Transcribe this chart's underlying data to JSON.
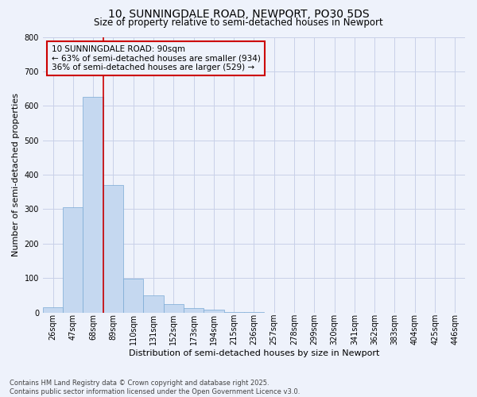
{
  "title1": "10, SUNNINGDALE ROAD, NEWPORT, PO30 5DS",
  "title2": "Size of property relative to semi-detached houses in Newport",
  "xlabel": "Distribution of semi-detached houses by size in Newport",
  "ylabel": "Number of semi-detached properties",
  "categories": [
    "26sqm",
    "47sqm",
    "68sqm",
    "89sqm",
    "110sqm",
    "131sqm",
    "152sqm",
    "173sqm",
    "194sqm",
    "215sqm",
    "236sqm",
    "257sqm",
    "278sqm",
    "299sqm",
    "320sqm",
    "341sqm",
    "362sqm",
    "383sqm",
    "404sqm",
    "425sqm",
    "446sqm"
  ],
  "values": [
    15,
    305,
    625,
    370,
    97,
    50,
    25,
    12,
    8,
    2,
    1,
    0,
    0,
    0,
    0,
    0,
    0,
    0,
    0,
    0,
    0
  ],
  "bar_color": "#c5d8f0",
  "bar_edge_color": "#7aaad4",
  "vline_index": 3,
  "pct_smaller": 63,
  "count_smaller": 934,
  "pct_larger": 36,
  "count_larger": 529,
  "annotation_line1": "10 SUNNINGDALE ROAD: 90sqm",
  "annotation_line2": "← 63% of semi-detached houses are smaller (934)",
  "annotation_line3": "36% of semi-detached houses are larger (529) →",
  "ylim": [
    0,
    800
  ],
  "yticks": [
    0,
    100,
    200,
    300,
    400,
    500,
    600,
    700,
    800
  ],
  "vline_color": "#cc0000",
  "box_edge_color": "#cc0000",
  "footer1": "Contains HM Land Registry data © Crown copyright and database right 2025.",
  "footer2": "Contains public sector information licensed under the Open Government Licence v3.0.",
  "bg_color": "#eef2fb",
  "grid_color": "#c8d0e8",
  "title_fontsize": 10,
  "subtitle_fontsize": 8.5,
  "axis_label_fontsize": 8,
  "tick_fontsize": 7,
  "footer_fontsize": 6,
  "annotation_fontsize": 7.5
}
